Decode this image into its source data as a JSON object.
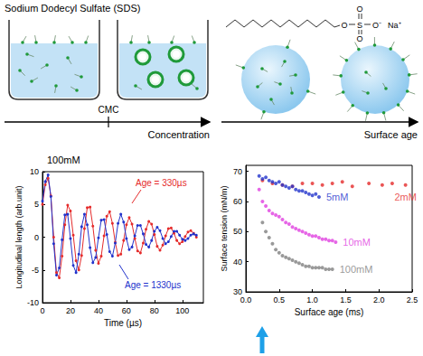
{
  "diagram": {
    "title": "Sodium Dodecyl Sulfate (SDS)",
    "cmc_label": "CMC",
    "concentration_label": "Concentration",
    "surface_age_label": "Surface age",
    "molecule": {
      "atoms": [
        "O",
        "S",
        "O",
        "O",
        "O⁻",
        "Na⁺"
      ]
    }
  },
  "chart_data": [
    {
      "type": "line",
      "title": "100mM",
      "x_label": "Time (µs)",
      "y_label": "Longitudinal length (arb.unit)",
      "x": [
        0,
        2,
        4,
        6,
        8,
        10,
        12,
        14,
        16,
        18,
        20,
        22,
        24,
        26,
        28,
        30,
        32,
        34,
        36,
        38,
        40,
        42,
        44,
        46,
        48,
        50,
        52,
        54,
        56,
        58,
        60,
        62,
        64,
        66,
        68,
        70,
        72,
        74,
        76,
        78,
        80,
        82,
        84,
        86,
        88,
        90,
        92,
        94,
        96,
        98,
        100,
        102,
        104,
        106,
        108,
        110
      ],
      "series": [
        {
          "name": "Age = 330µs",
          "color": "#e52b2b",
          "marker": "circle",
          "line_style": "solid",
          "values": [
            5,
            8,
            9,
            6.3,
            0.0,
            -5.4,
            -6.2,
            -2.9,
            1.9,
            4.9,
            4.0,
            0.3,
            -3.6,
            -5.0,
            -2.8,
            1.3,
            4.5,
            4.6,
            1.7,
            -2.0,
            -4.0,
            -2.9,
            0.2,
            3.2,
            3.9,
            2.1,
            -0.8,
            -2.8,
            -2.6,
            -0.5,
            1.9,
            3.0,
            2.0,
            -0.2,
            -2.1,
            -2.4,
            -0.9,
            1.2,
            2.4,
            2.0,
            0.4,
            -1.4,
            -2.0,
            -1.2,
            0.2,
            1.3,
            1.4,
            0.6,
            -0.5,
            -1.0,
            -0.7,
            0.1,
            0.8,
            1.0,
            0.6,
            0.0
          ]
        },
        {
          "name": "Age = 1330µs",
          "color": "#2233cc",
          "marker": "circle",
          "line_style": "solid",
          "values": [
            5.5,
            8.5,
            9.5,
            6.2,
            -1.0,
            -5.8,
            -4.7,
            -0.4,
            3.4,
            3.5,
            -0.2,
            -4.3,
            -5.4,
            -2.6,
            1.6,
            3.5,
            1.9,
            -1.6,
            -3.9,
            -3.1,
            -0.1,
            2.6,
            2.7,
            0.4,
            -2.2,
            -2.9,
            -0.9,
            2.1,
            3.5,
            2.3,
            -0.2,
            -1.9,
            -1.5,
            0.2,
            1.8,
            1.8,
            0.5,
            -1.1,
            -1.5,
            -0.5,
            0.9,
            1.5,
            1.0,
            -0.2,
            -1.0,
            -0.7,
            0.1,
            0.9,
            0.9,
            0.3,
            -0.3,
            -0.5,
            -0.2,
            0.3,
            0.5,
            0.3
          ]
        }
      ],
      "xlim": [
        0,
        115
      ],
      "xticks": [
        0,
        20,
        40,
        60,
        80,
        100
      ],
      "ylim": [
        -10,
        10
      ],
      "yticks": [
        -10,
        -5,
        0,
        5,
        10
      ],
      "grid": false
    },
    {
      "type": "scatter",
      "x_label": "Surface age (ms)",
      "y_label": "Surface tension (mN/m)",
      "series": [
        {
          "name": "2mM",
          "color": "#e52b2b",
          "marker": "circle",
          "x": [
            0.25,
            0.4,
            0.55,
            0.7,
            0.85,
            1.0,
            1.15,
            1.3,
            1.45,
            1.6,
            1.85,
            2.05,
            2.2,
            2.4
          ],
          "values": [
            67,
            66,
            65.5,
            65,
            66,
            66,
            65.5,
            66,
            66.5,
            65,
            66,
            65.5,
            66,
            65.5
          ]
        },
        {
          "name": "5mM",
          "color": "#2233cc",
          "marker": "circle",
          "x": [
            0.2,
            0.25,
            0.3,
            0.35,
            0.4,
            0.45,
            0.5,
            0.55,
            0.6,
            0.65,
            0.7,
            0.75,
            0.8,
            0.85,
            0.9,
            0.95,
            1.0,
            1.05,
            1.1
          ],
          "values": [
            68.5,
            67.5,
            68,
            67,
            66.5,
            66,
            66.5,
            65.5,
            65,
            64.5,
            65,
            64,
            63.5,
            63.5,
            63,
            62.5,
            62,
            62.5,
            61.5
          ]
        },
        {
          "name": "10mM",
          "color": "#e040e0",
          "marker": "circle",
          "x": [
            0.2,
            0.25,
            0.3,
            0.35,
            0.4,
            0.45,
            0.5,
            0.55,
            0.6,
            0.65,
            0.7,
            0.75,
            0.8,
            0.85,
            0.9,
            0.95,
            1.0,
            1.05,
            1.1,
            1.15,
            1.2,
            1.25,
            1.3,
            1.35
          ],
          "values": [
            64,
            60,
            58.5,
            57,
            56,
            55.5,
            55,
            54,
            53,
            52.5,
            51.5,
            51,
            50.5,
            50,
            49.5,
            49,
            48.5,
            48.5,
            48,
            47.5,
            47.5,
            47,
            47,
            46.5
          ]
        },
        {
          "name": "100mM",
          "color": "#808080",
          "marker": "circle",
          "x": [
            0.25,
            0.3,
            0.35,
            0.4,
            0.45,
            0.5,
            0.55,
            0.6,
            0.65,
            0.7,
            0.75,
            0.8,
            0.85,
            0.9,
            0.95,
            1.0,
            1.05,
            1.1,
            1.15,
            1.2,
            1.25,
            1.3
          ],
          "values": [
            53,
            50,
            48,
            46,
            44,
            43,
            42,
            41.5,
            41,
            40.5,
            40,
            39.5,
            39,
            38.5,
            38.5,
            38,
            38,
            38,
            38,
            37.5,
            37.5,
            37.5
          ]
        }
      ],
      "xlim": [
        0,
        2.5
      ],
      "xticks": [
        {
          "value": 0,
          "label": "0.0"
        },
        0.5,
        {
          "value": 1,
          "label": "1.0"
        },
        1.5,
        {
          "value": 2,
          "label": "2.0"
        },
        2.5
      ],
      "ylim": [
        30,
        72
      ],
      "yticks": [
        30,
        40,
        50,
        60,
        70
      ],
      "grid": false
    }
  ]
}
